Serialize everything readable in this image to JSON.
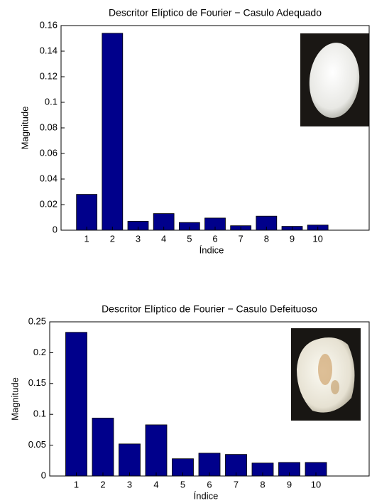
{
  "chart_data": [
    {
      "type": "bar",
      "title": "Descritor Elíptico de Fourier − Casulo Adequado",
      "x_label": "Índice",
      "y_label": "Magnitude",
      "x": [
        1,
        2,
        3,
        4,
        5,
        6,
        7,
        8,
        9,
        10
      ],
      "values": [
        0.028,
        0.154,
        0.007,
        0.013,
        0.006,
        0.0095,
        0.0035,
        0.011,
        0.003,
        0.004
      ],
      "color": "#00008b",
      "xlim": [
        0,
        12
      ],
      "xticks": [
        1,
        2,
        3,
        4,
        5,
        6,
        7,
        8,
        9,
        10
      ],
      "ylim": [
        0,
        0.16
      ],
      "yticks": [
        0,
        0.02,
        0.04,
        0.06,
        0.08,
        0.1,
        0.12,
        0.14,
        0.16
      ],
      "grid": false
    },
    {
      "type": "bar",
      "title": "Descritor Elíptico de Fourier − Casulo Defeituoso",
      "x_label": "Índice",
      "y_label": "Magnitude",
      "x": [
        1,
        2,
        3,
        4,
        5,
        6,
        7,
        8,
        9,
        10
      ],
      "values": [
        0.233,
        0.094,
        0.052,
        0.083,
        0.028,
        0.037,
        0.035,
        0.021,
        0.022,
        0.022
      ],
      "color": "#00008b",
      "xlim": [
        0,
        12
      ],
      "xticks": [
        1,
        2,
        3,
        4,
        5,
        6,
        7,
        8,
        9,
        10
      ],
      "ylim": [
        0,
        0.25
      ],
      "yticks": [
        0,
        0.05,
        0.1,
        0.15,
        0.2,
        0.25
      ],
      "grid": false
    }
  ]
}
